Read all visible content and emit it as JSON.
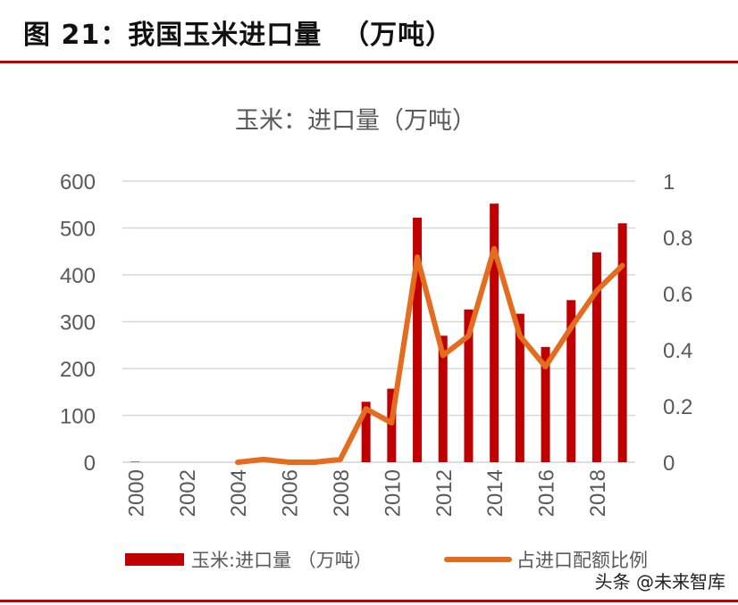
{
  "figure": {
    "title": "图 21：我国玉米进口量  （万吨）",
    "watermark": "头条 @未来智库",
    "colors": {
      "bar": "#c00000",
      "line": "#e36c1e",
      "rule": "#c00000",
      "grid": "#d9d9d9"
    }
  },
  "chart_data": {
    "type": "bar",
    "title": "玉米：进口量（万吨）",
    "x": [
      2000,
      2001,
      2002,
      2003,
      2004,
      2005,
      2006,
      2007,
      2008,
      2009,
      2010,
      2011,
      2012,
      2013,
      2014,
      2015,
      2016,
      2017,
      2018,
      2019
    ],
    "x_tick_labels": [
      "2000",
      "2002",
      "2004",
      "2006",
      "2008",
      "2010",
      "2012",
      "2014",
      "2016",
      "2018"
    ],
    "y_left": {
      "lim": [
        0,
        600
      ],
      "ticks": [
        "0",
        "100",
        "200",
        "300",
        "400",
        "500",
        "600"
      ]
    },
    "y_right": {
      "lim": [
        0,
        1
      ],
      "ticks": [
        "0",
        "0.2",
        "0.4",
        "0.6",
        "0.8",
        "1"
      ]
    },
    "grid": true,
    "legend_position": "bottom",
    "series": [
      {
        "name": "玉米:进口量 （万吨）",
        "type": "bar",
        "axis": "left",
        "values": [
          1,
          0,
          0,
          0,
          0,
          0,
          0,
          0,
          0,
          129,
          157,
          522,
          270,
          326,
          552,
          317,
          246,
          346,
          448,
          510
        ]
      },
      {
        "name": "占进口配额比例",
        "type": "line",
        "axis": "right",
        "values": [
          null,
          null,
          null,
          null,
          0.0,
          0.01,
          0.0,
          0.0,
          0.01,
          0.19,
          0.14,
          0.73,
          0.38,
          0.45,
          0.76,
          0.45,
          0.34,
          0.48,
          0.61,
          0.7
        ]
      }
    ]
  }
}
